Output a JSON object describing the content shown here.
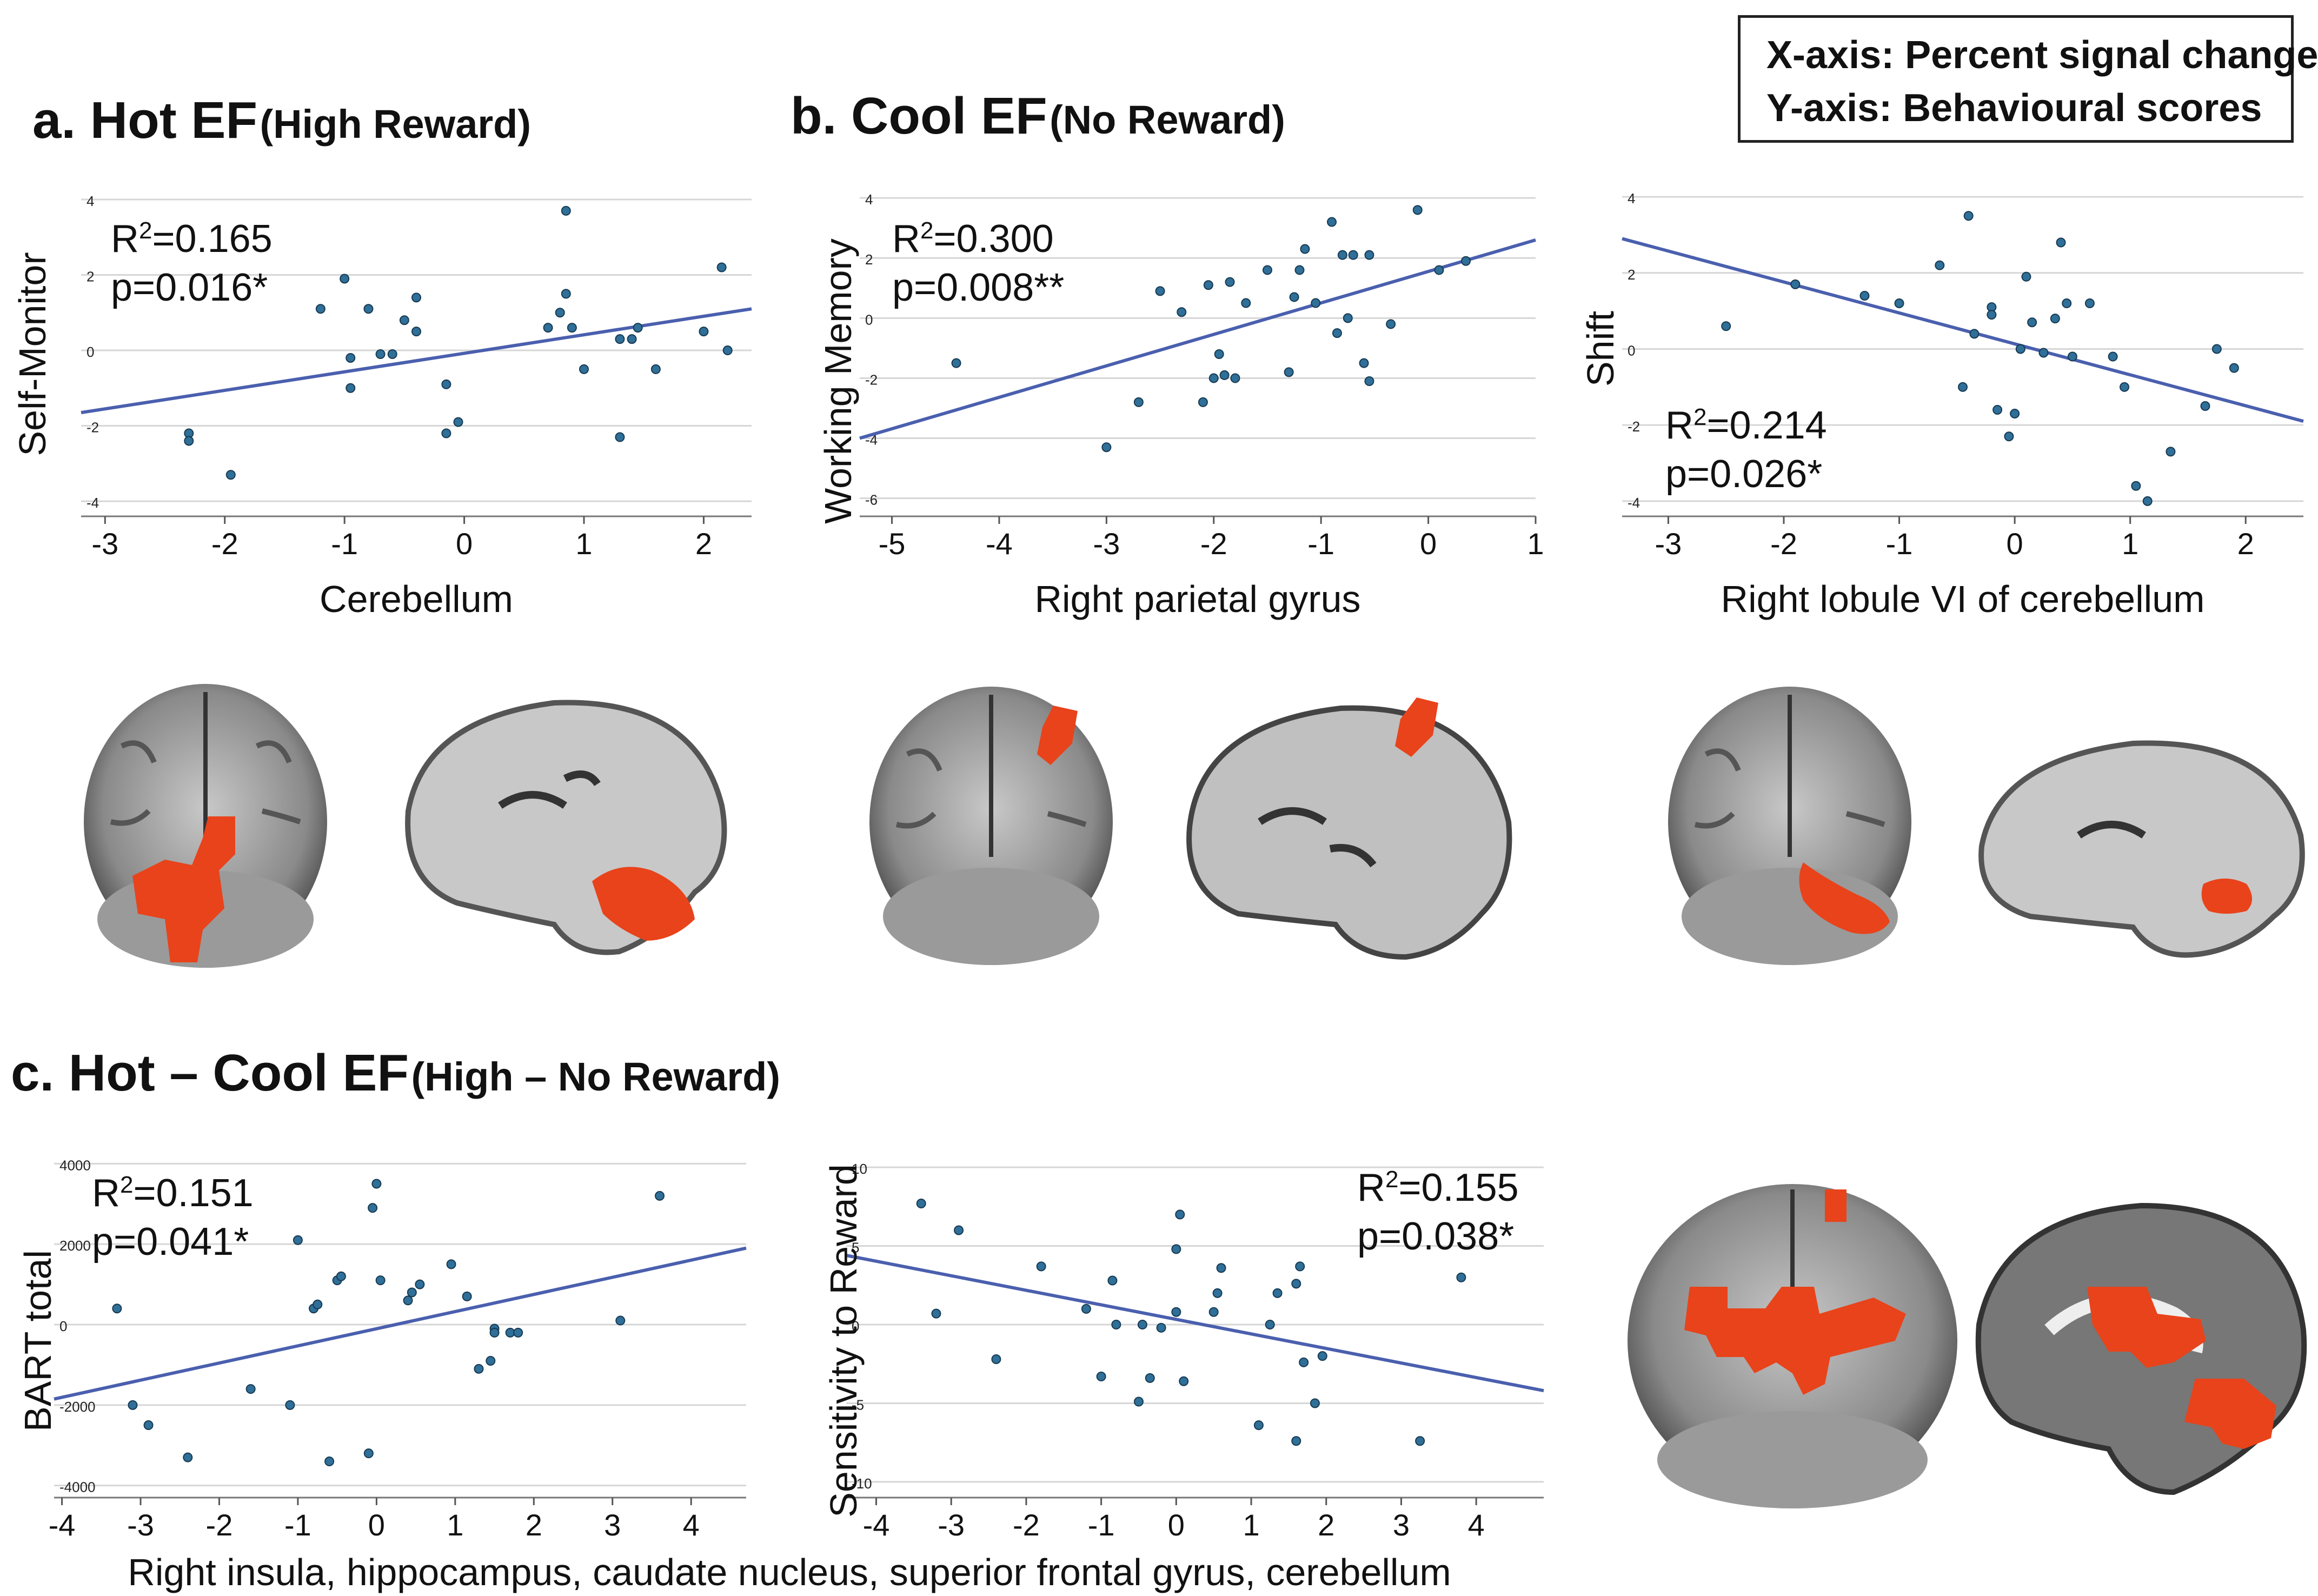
{
  "legend": {
    "x_axis": "X-axis: Percent signal change",
    "y_axis": "Y-axis: Behavioural scores"
  },
  "titles": {
    "a_main": "a. Hot EF",
    "a_sub": "(High Reward)",
    "b_main": "b. Cool EF",
    "b_sub": "(No Reward)",
    "c_main": "c. Hot – Cool EF",
    "c_sub": "(High – No Reward)"
  },
  "shared_xlabel_c": "Right insula, hippocampus, caudate nucleus, superior frontal gyrus, cerebellum",
  "colors": {
    "point": "#2f6f98",
    "line": "#4a5fae",
    "activation": "#e8431b"
  },
  "chart_data": [
    {
      "id": "a",
      "type": "scatter",
      "xlabel": "Cerebellum",
      "ylabel": "Self-Monitor",
      "r2_label": "R",
      "r2_value": "=0.165",
      "p_label": "p=0.016*",
      "xlim": [
        -3.2,
        2.4
      ],
      "ylim": [
        -4.4,
        4.2
      ],
      "xticks": [
        -3,
        -2,
        -1,
        0,
        1,
        2
      ],
      "yticks": [
        -4,
        -2,
        0,
        2,
        4
      ],
      "fit": [
        [
          -3.2,
          -1.65
        ],
        [
          2.4,
          1.1
        ]
      ],
      "x": [
        -2.3,
        -2.3,
        -1.95,
        -1.2,
        -1.0,
        -0.95,
        -0.95,
        -0.8,
        -0.7,
        -0.6,
        -0.5,
        -0.4,
        -0.4,
        -0.15,
        -0.15,
        -0.05,
        0.7,
        0.8,
        0.85,
        0.85,
        0.9,
        1.0,
        1.3,
        1.3,
        1.4,
        1.45,
        1.6,
        2.0,
        2.15,
        2.2
      ],
      "y": [
        -2.2,
        -2.4,
        -3.3,
        1.1,
        1.9,
        -0.2,
        -1.0,
        1.1,
        -0.1,
        -0.1,
        0.8,
        1.4,
        0.5,
        -0.9,
        -2.2,
        -1.9,
        0.6,
        1.0,
        3.7,
        1.5,
        0.6,
        -0.5,
        -2.3,
        0.3,
        0.3,
        0.6,
        -0.5,
        0.5,
        2.2,
        0.0
      ]
    },
    {
      "id": "b1",
      "type": "scatter",
      "xlabel": "Right parietal gyrus",
      "ylabel": "Working Memory",
      "r2_label": "R",
      "r2_value": "=0.300",
      "p_label": "p=0.008**",
      "xlim": [
        -5.3,
        1.0
      ],
      "ylim": [
        -6.6,
        4.2
      ],
      "xticks": [
        -5,
        -4,
        -3,
        -2,
        -1,
        0,
        1
      ],
      "yticks": [
        -6,
        -4,
        -2,
        0,
        2,
        4
      ],
      "fit": [
        [
          -5.3,
          -4.0
        ],
        [
          1.0,
          2.6
        ]
      ],
      "x": [
        -4.4,
        -3.0,
        -2.7,
        -2.5,
        -2.3,
        -2.1,
        -2.05,
        -2.0,
        -1.95,
        -1.9,
        -1.85,
        -1.8,
        -1.7,
        -1.5,
        -1.3,
        -1.25,
        -1.2,
        -1.15,
        -1.05,
        -0.9,
        -0.85,
        -0.8,
        -0.75,
        -0.7,
        -0.6,
        -0.55,
        -0.55,
        -0.35,
        -0.1,
        0.1,
        0.35
      ],
      "y": [
        -1.5,
        -4.3,
        -2.8,
        0.9,
        0.2,
        -2.8,
        1.1,
        -2.0,
        -1.2,
        -1.9,
        1.2,
        -2.0,
        0.5,
        1.6,
        -1.8,
        0.7,
        1.6,
        2.3,
        0.5,
        3.2,
        -0.5,
        2.1,
        0.0,
        2.1,
        -1.5,
        2.1,
        -2.1,
        -0.2,
        3.6,
        1.6,
        1.9
      ]
    },
    {
      "id": "b2",
      "type": "scatter",
      "xlabel": "Right lobule VI of cerebellum",
      "ylabel": "Shift",
      "r2_label": "R",
      "r2_value": "=0.214",
      "p_label": "p=0.026*",
      "xlim": [
        -3.4,
        2.5
      ],
      "ylim": [
        -4.4,
        4.2
      ],
      "xticks": [
        -3,
        -2,
        -1,
        0,
        1,
        2
      ],
      "yticks": [
        -4,
        -2,
        0,
        2,
        4
      ],
      "fit": [
        [
          -3.4,
          2.9
        ],
        [
          2.5,
          -1.9
        ]
      ],
      "x": [
        -2.5,
        -1.9,
        -1.3,
        -1.0,
        -0.65,
        -0.45,
        -0.4,
        -0.35,
        -0.2,
        -0.2,
        -0.15,
        -0.05,
        0.0,
        0.05,
        0.1,
        0.15,
        0.25,
        0.35,
        0.4,
        0.45,
        0.5,
        0.65,
        0.85,
        0.95,
        1.05,
        1.15,
        1.35,
        1.65,
        1.75,
        1.9
      ],
      "y": [
        0.6,
        1.7,
        1.4,
        1.2,
        2.2,
        -1.0,
        3.5,
        0.4,
        1.1,
        0.9,
        -1.6,
        -2.3,
        -1.7,
        0.0,
        1.9,
        0.7,
        -0.1,
        0.8,
        2.8,
        1.2,
        -0.2,
        1.2,
        -0.2,
        -1.0,
        -3.6,
        -4.0,
        -2.7,
        -1.5,
        0.0,
        -0.5
      ]
    },
    {
      "id": "c1",
      "type": "scatter",
      "xlabel": "",
      "ylabel": "BART total",
      "r2_label": "R",
      "r2_value": "=0.151",
      "p_label": "p=0.041*",
      "xlim": [
        -4.1,
        4.7
      ],
      "ylim": [
        -4300,
        4300
      ],
      "xticks": [
        -4,
        -3,
        -2,
        -1,
        0,
        1,
        2,
        3,
        4
      ],
      "yticks": [
        -4000,
        -2000,
        0,
        2000,
        4000
      ],
      "fit": [
        [
          -4.1,
          -1850
        ],
        [
          4.7,
          1900
        ]
      ],
      "x": [
        -3.3,
        -3.1,
        -2.9,
        -2.4,
        -1.6,
        -1.1,
        -1.0,
        -0.8,
        -0.75,
        -0.6,
        -0.5,
        -0.45,
        -0.1,
        -0.05,
        0.0,
        0.05,
        0.4,
        0.45,
        0.55,
        0.95,
        1.15,
        1.3,
        1.45,
        1.5,
        1.5,
        1.7,
        1.8,
        3.1,
        3.6
      ],
      "y": [
        400,
        -2000,
        -2500,
        -3300,
        -1600,
        -2000,
        2100,
        400,
        500,
        -3400,
        1100,
        1200,
        -3200,
        2900,
        3500,
        1100,
        600,
        800,
        1000,
        1500,
        700,
        -1100,
        -900,
        -100,
        -200,
        -200,
        -200,
        100,
        3200
      ]
    },
    {
      "id": "c2",
      "type": "scatter",
      "xlabel": "",
      "ylabel": "Sensitivity to Reward",
      "r2_label": "R",
      "r2_value": "=0.155",
      "p_label": "p=0.038*",
      "xlim": [
        -4.4,
        4.9
      ],
      "ylim": [
        -11,
        11
      ],
      "xticks": [
        -4,
        -3,
        -2,
        -1,
        0,
        1,
        2,
        3,
        4
      ],
      "yticks": [
        -10,
        -5,
        0,
        5,
        10
      ],
      "fit": [
        [
          -4.4,
          4.4
        ],
        [
          4.9,
          -4.2
        ]
      ],
      "x": [
        -3.4,
        -3.2,
        -2.9,
        -2.4,
        -1.8,
        -1.2,
        -1.0,
        -0.85,
        -0.8,
        -0.5,
        -0.45,
        -0.35,
        -0.2,
        0.0,
        0.0,
        0.05,
        0.1,
        0.5,
        0.55,
        0.6,
        1.1,
        1.25,
        1.35,
        1.6,
        1.6,
        1.65,
        1.7,
        1.85,
        1.95,
        3.25,
        3.8
      ],
      "y": [
        7.7,
        0.7,
        6.0,
        -2.2,
        3.7,
        1.0,
        -3.3,
        2.8,
        0.0,
        -4.9,
        0.0,
        -3.4,
        -0.2,
        0.8,
        4.8,
        7.0,
        -3.6,
        0.8,
        2.0,
        3.6,
        -6.4,
        0.0,
        2.0,
        -7.4,
        2.6,
        3.7,
        -2.4,
        -5.0,
        -2.0,
        -7.4,
        3.0
      ]
    }
  ]
}
